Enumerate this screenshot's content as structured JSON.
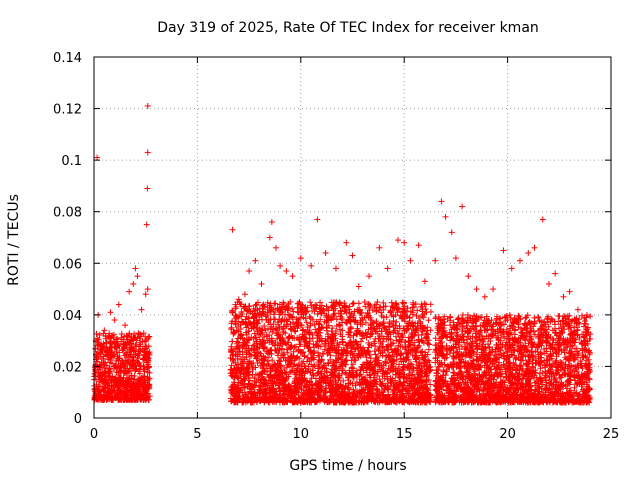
{
  "chart_data": {
    "type": "scatter",
    "title": "Day 319 of 2025, Rate Of TEC Index for receiver kman",
    "xlabel": "GPS time / hours",
    "ylabel": "ROTI / TECUs",
    "xlim": [
      0,
      25
    ],
    "ylim": [
      0,
      0.14
    ],
    "xticks": [
      0,
      5,
      10,
      15,
      20,
      25
    ],
    "xtick_labels": [
      "0",
      "5",
      "10",
      "15",
      "20",
      "25"
    ],
    "yticks": [
      0,
      0.02,
      0.04,
      0.06,
      0.08,
      0.1,
      0.12,
      0.14
    ],
    "ytick_labels": [
      "0",
      "0.02",
      "0.04",
      "0.06",
      "0.08",
      "0.1",
      "0.12",
      "0.14"
    ],
    "grid": true,
    "marker": "+",
    "color": "#ff0000",
    "series": [
      {
        "name": "ROTI",
        "points": [
          [
            0.15,
            0.101
          ],
          [
            2.6,
            0.121
          ],
          [
            2.6,
            0.103
          ],
          [
            2.58,
            0.089
          ],
          [
            2.55,
            0.075
          ],
          [
            0.2,
            0.04
          ],
          [
            0.5,
            0.034
          ],
          [
            0.8,
            0.041
          ],
          [
            1.0,
            0.038
          ],
          [
            1.2,
            0.044
          ],
          [
            1.5,
            0.036
          ],
          [
            1.7,
            0.049
          ],
          [
            1.9,
            0.052
          ],
          [
            2.0,
            0.058
          ],
          [
            2.1,
            0.055
          ],
          [
            2.3,
            0.042
          ],
          [
            2.5,
            0.048
          ],
          [
            2.6,
            0.05
          ],
          [
            6.7,
            0.073
          ],
          [
            7.0,
            0.046
          ],
          [
            7.3,
            0.048
          ],
          [
            7.5,
            0.057
          ],
          [
            7.8,
            0.061
          ],
          [
            8.1,
            0.052
          ],
          [
            8.5,
            0.07
          ],
          [
            8.6,
            0.076
          ],
          [
            8.8,
            0.066
          ],
          [
            9.0,
            0.059
          ],
          [
            9.3,
            0.057
          ],
          [
            9.6,
            0.055
          ],
          [
            10.0,
            0.062
          ],
          [
            10.5,
            0.059
          ],
          [
            10.8,
            0.077
          ],
          [
            11.2,
            0.064
          ],
          [
            11.7,
            0.058
          ],
          [
            12.2,
            0.068
          ],
          [
            12.5,
            0.063
          ],
          [
            12.8,
            0.051
          ],
          [
            13.3,
            0.055
          ],
          [
            13.8,
            0.066
          ],
          [
            14.2,
            0.058
          ],
          [
            14.7,
            0.069
          ],
          [
            15.0,
            0.068
          ],
          [
            15.3,
            0.061
          ],
          [
            15.7,
            0.067
          ],
          [
            16.0,
            0.053
          ],
          [
            16.5,
            0.061
          ],
          [
            16.8,
            0.084
          ],
          [
            17.0,
            0.078
          ],
          [
            17.3,
            0.072
          ],
          [
            17.5,
            0.062
          ],
          [
            17.8,
            0.082
          ],
          [
            18.1,
            0.055
          ],
          [
            18.5,
            0.05
          ],
          [
            18.9,
            0.047
          ],
          [
            19.3,
            0.05
          ],
          [
            19.8,
            0.065
          ],
          [
            20.2,
            0.058
          ],
          [
            20.6,
            0.061
          ],
          [
            21.0,
            0.064
          ],
          [
            21.3,
            0.066
          ],
          [
            21.7,
            0.077
          ],
          [
            22.0,
            0.052
          ],
          [
            22.3,
            0.056
          ],
          [
            22.7,
            0.047
          ],
          [
            23.0,
            0.049
          ],
          [
            23.4,
            0.042
          ],
          [
            23.8,
            0.039
          ]
        ],
        "dense_bands": [
          {
            "x_range": [
              0.0,
              2.7
            ],
            "y_range": [
              0.007,
              0.033
            ]
          },
          {
            "x_range": [
              6.6,
              16.3
            ],
            "y_range": [
              0.006,
              0.045
            ]
          },
          {
            "x_range": [
              16.5,
              24.0
            ],
            "y_range": [
              0.006,
              0.04
            ]
          }
        ]
      }
    ]
  }
}
